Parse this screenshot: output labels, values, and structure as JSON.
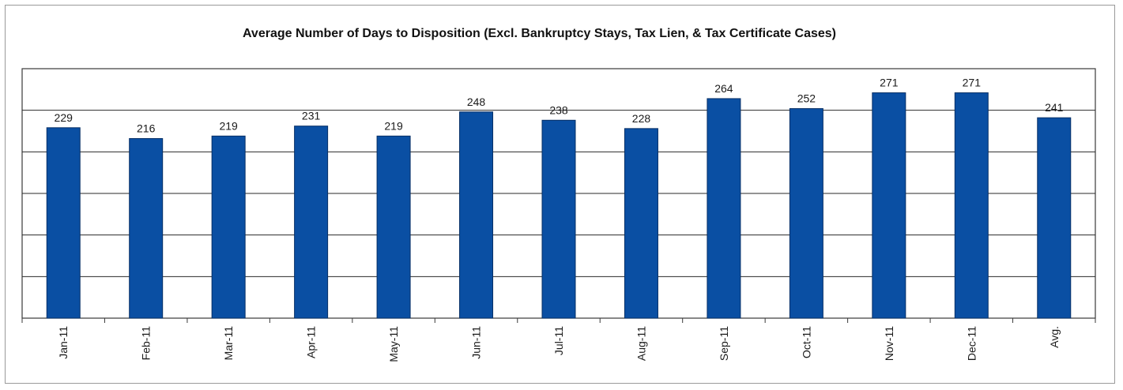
{
  "chart_data": {
    "type": "bar",
    "title": "Average Number of Days to Disposition  (Excl. Bankruptcy Stays, Tax Lien, & Tax Certificate Cases)",
    "categories": [
      "Jan-11",
      "Feb-11",
      "Mar-11",
      "Apr-11",
      "May-11",
      "Jun-11",
      "Jul-11",
      "Aug-11",
      "Sep-11",
      "Oct-11",
      "Nov-11",
      "Dec-11",
      "Avg."
    ],
    "values": [
      229,
      216,
      219,
      231,
      219,
      248,
      238,
      228,
      264,
      252,
      271,
      271,
      241
    ],
    "xlabel": "",
    "ylabel": "",
    "ylim": [
      0,
      300
    ],
    "grid": true,
    "legend": "none",
    "bar_color": "#0a4fa3",
    "plot_background": "#ffffff",
    "gridline_color": "#2a2a2a"
  }
}
